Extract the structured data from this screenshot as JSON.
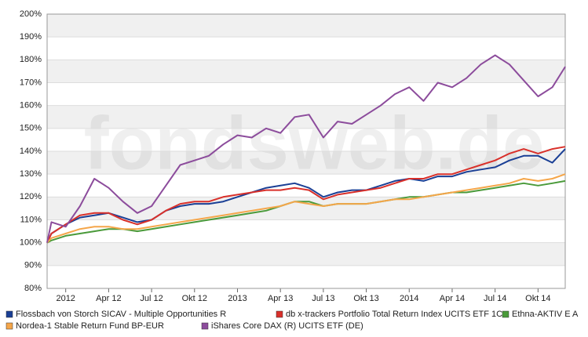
{
  "chart_data": {
    "type": "line",
    "watermark": "fondsweb.de",
    "x": [
      -1.3,
      -1,
      0,
      1,
      2,
      3,
      4,
      5,
      6,
      7,
      8,
      9,
      10,
      11,
      12,
      13,
      14,
      15,
      16,
      17,
      18,
      19,
      20,
      21,
      22,
      23,
      24,
      25,
      26,
      27,
      28,
      29,
      30,
      31,
      32,
      33,
      34,
      34.9
    ],
    "xlim": [
      -1.3,
      34.9
    ],
    "xticks": [
      {
        "value": 0,
        "label": "2012"
      },
      {
        "value": 3,
        "label": "Apr 12"
      },
      {
        "value": 6,
        "label": "Jul 12"
      },
      {
        "value": 9,
        "label": "Okt 12"
      },
      {
        "value": 12,
        "label": "2013"
      },
      {
        "value": 15,
        "label": "Apr 13"
      },
      {
        "value": 18,
        "label": "Jul 13"
      },
      {
        "value": 21,
        "label": "Okt 13"
      },
      {
        "value": 24,
        "label": "2014"
      },
      {
        "value": 27,
        "label": "Apr 14"
      },
      {
        "value": 30,
        "label": "Jul 14"
      },
      {
        "value": 33,
        "label": "Okt 14"
      }
    ],
    "ylim": [
      80,
      200
    ],
    "yticks": [
      {
        "value": 80,
        "label": "80%"
      },
      {
        "value": 90,
        "label": "90%"
      },
      {
        "value": 100,
        "label": "100%"
      },
      {
        "value": 110,
        "label": "110%"
      },
      {
        "value": 120,
        "label": "120%"
      },
      {
        "value": 130,
        "label": "130%"
      },
      {
        "value": 140,
        "label": "140%"
      },
      {
        "value": 150,
        "label": "150%"
      },
      {
        "value": 160,
        "label": "160%"
      },
      {
        "value": 170,
        "label": "170%"
      },
      {
        "value": 180,
        "label": "180%"
      },
      {
        "value": 190,
        "label": "190%"
      },
      {
        "value": 200,
        "label": "200%"
      }
    ],
    "grid": true,
    "legend": "bottom",
    "series": [
      {
        "name": "Flossbach von Storch SICAV - Multiple Opportunities R",
        "color": "#1a3f95",
        "values": [
          100,
          104,
          108,
          111,
          112,
          113,
          111,
          109,
          110,
          114,
          116,
          117,
          117,
          118,
          120,
          122,
          124,
          125,
          126,
          124,
          120,
          122,
          123,
          123,
          125,
          127,
          128,
          127,
          129,
          129,
          131,
          132,
          133,
          136,
          138,
          138,
          135,
          141
        ]
      },
      {
        "name": "db x-trackers Portfolio Total Return Index UCITS ETF 1C",
        "color": "#d9302a",
        "values": [
          100,
          104,
          108,
          112,
          113,
          113,
          110,
          108,
          110,
          114,
          117,
          118,
          118,
          120,
          121,
          122,
          123,
          123,
          124,
          123,
          119,
          121,
          122,
          123,
          124,
          126,
          128,
          128,
          130,
          130,
          132,
          134,
          136,
          139,
          141,
          139,
          141,
          142
        ]
      },
      {
        "name": "Ethna-AKTIV E A",
        "color": "#4a9a3a",
        "values": [
          100,
          101,
          103,
          104,
          105,
          106,
          106,
          105,
          106,
          107,
          108,
          109,
          110,
          111,
          112,
          113,
          114,
          116,
          118,
          118,
          116,
          117,
          117,
          117,
          118,
          119,
          120,
          120,
          121,
          122,
          122,
          123,
          124,
          125,
          126,
          125,
          126,
          127
        ]
      },
      {
        "name": "Nordea-1 Stable Return Fund BP-EUR",
        "color": "#f5a64a",
        "values": [
          100,
          102,
          104,
          106,
          107,
          107,
          106,
          106,
          107,
          108,
          109,
          110,
          111,
          112,
          113,
          114,
          115,
          116,
          118,
          117,
          116,
          117,
          117,
          117,
          118,
          119,
          119,
          120,
          121,
          122,
          123,
          124,
          125,
          126,
          128,
          127,
          128,
          130
        ]
      },
      {
        "name": "iShares Core DAX (R) UCITS ETF (DE)",
        "color": "#8c4c9c",
        "values": [
          100,
          109,
          107,
          116,
          128,
          124,
          118,
          113,
          116,
          125,
          134,
          136,
          138,
          143,
          147,
          146,
          150,
          148,
          155,
          156,
          146,
          153,
          152,
          156,
          160,
          165,
          168,
          162,
          170,
          168,
          172,
          178,
          182,
          178,
          171,
          164,
          168,
          177
        ]
      }
    ]
  }
}
